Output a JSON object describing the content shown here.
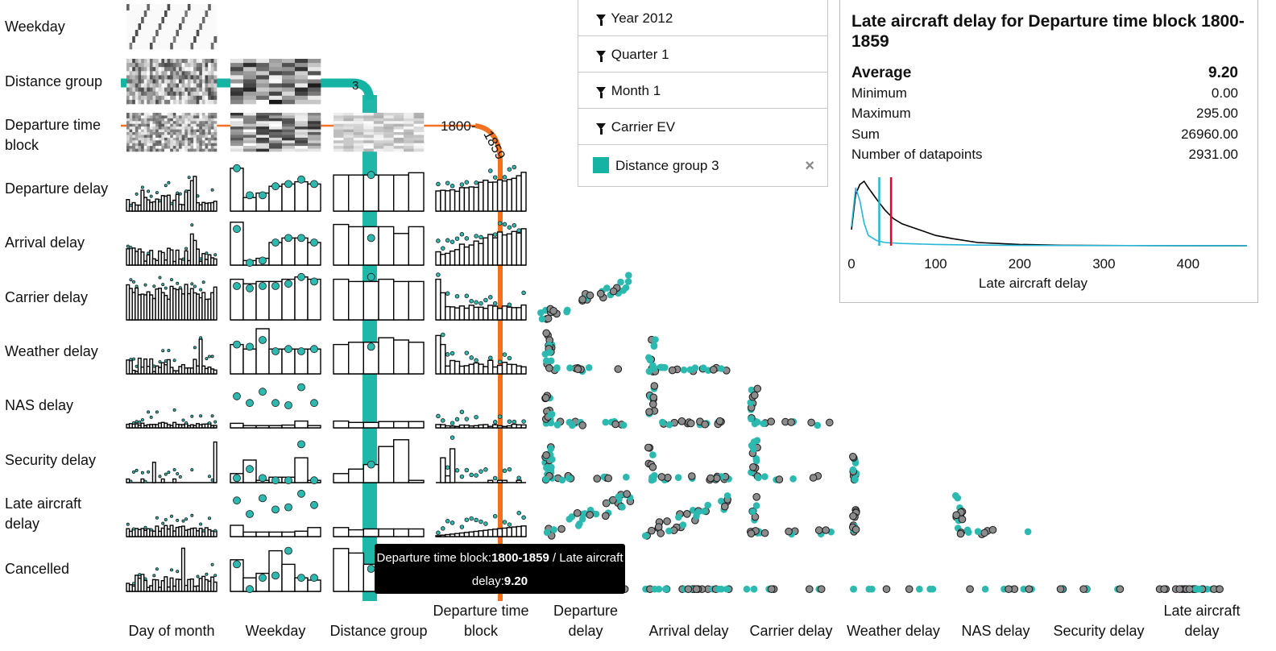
{
  "variables": [
    "Weekday",
    "Distance group",
    "Departure time block",
    "Departure delay",
    "Arrival delay",
    "Carrier delay",
    "Weather delay",
    "NAS delay",
    "Security delay",
    "Late aircraft delay",
    "Cancelled"
  ],
  "row_labels": [
    {
      "id": "weekday",
      "lines": [
        "Weekday"
      ]
    },
    {
      "id": "distance-group",
      "lines": [
        "Distance group"
      ]
    },
    {
      "id": "departure-time-block",
      "lines": [
        "Departure time",
        "block"
      ]
    },
    {
      "id": "departure-delay",
      "lines": [
        "Departure delay"
      ]
    },
    {
      "id": "arrival-delay",
      "lines": [
        "Arrival delay"
      ]
    },
    {
      "id": "carrier-delay",
      "lines": [
        "Carrier delay"
      ]
    },
    {
      "id": "weather-delay",
      "lines": [
        "Weather delay"
      ]
    },
    {
      "id": "nas-delay",
      "lines": [
        "NAS delay"
      ]
    },
    {
      "id": "security-delay",
      "lines": [
        "Security delay"
      ]
    },
    {
      "id": "late-aircraft-delay",
      "lines": [
        "Late aircraft",
        "delay"
      ]
    },
    {
      "id": "cancelled",
      "lines": [
        "Cancelled"
      ]
    }
  ],
  "col_labels": [
    {
      "id": "day-of-month",
      "lines": [
        "Day of month"
      ]
    },
    {
      "id": "weekday",
      "lines": [
        "Weekday"
      ]
    },
    {
      "id": "distance-group",
      "lines": [
        "Distance group"
      ]
    },
    {
      "id": "departure-time-block",
      "lines": [
        "Departure time",
        "block"
      ]
    },
    {
      "id": "departure-delay",
      "lines": [
        "Departure",
        "delay"
      ]
    },
    {
      "id": "arrival-delay",
      "lines": [
        "Arrival delay"
      ]
    },
    {
      "id": "carrier-delay",
      "lines": [
        "Carrier delay"
      ]
    },
    {
      "id": "weather-delay",
      "lines": [
        "Weather delay"
      ]
    },
    {
      "id": "nas-delay",
      "lines": [
        "NAS delay"
      ]
    },
    {
      "id": "security-delay",
      "lines": [
        "Security delay"
      ]
    },
    {
      "id": "late-aircraft-delay",
      "lines": [
        "Late aircraft",
        "delay"
      ]
    }
  ],
  "filters": {
    "year": "Year 2012",
    "quarter": "Quarter 1",
    "month": "Month 1",
    "carrier": "Carrier EV",
    "selection": "Distance group 3",
    "close": "×"
  },
  "selection_labels": {
    "distance_group": "3",
    "departure_time_block": "1800-1859"
  },
  "colors": {
    "selection_distance": "#14b3a3",
    "selection_time": "#f37021",
    "overall": "#777777",
    "highlight": "#2cb9b0"
  },
  "detail_panel": {
    "title": "Late aircraft delay for Departure time block 1800-1859",
    "stats": [
      {
        "label": "Average",
        "value": "9.20"
      },
      {
        "label": "Minimum",
        "value": "0.00"
      },
      {
        "label": "Maximum",
        "value": "295.00"
      },
      {
        "label": "Sum",
        "value": "26960.00"
      },
      {
        "label": "Number of datapoints",
        "value": "2931.00"
      }
    ]
  },
  "tooltip": {
    "prefix": "Departure time block:",
    "block": "1800-1859",
    "middle": " / Late aircraft delay:",
    "value": "9.20"
  },
  "chart_data": [
    {
      "type": "line",
      "title": "Late aircraft delay for Departure time block 1800-1859",
      "xlabel": "Late aircraft delay",
      "xticks": [
        "0",
        "100",
        "200",
        "300",
        "400"
      ],
      "xlim": [
        0,
        470
      ],
      "series": [
        {
          "color": "#000000",
          "x": [
            0,
            5,
            10,
            15,
            20,
            30,
            40,
            50,
            60,
            80,
            100,
            120,
            150,
            200,
            250,
            300,
            350,
            400,
            470
          ],
          "y": [
            0.25,
            0.8,
            0.95,
            1.0,
            0.9,
            0.72,
            0.55,
            0.42,
            0.34,
            0.25,
            0.16,
            0.11,
            0.05,
            0.02,
            0.008,
            0.004,
            0.002,
            0.001,
            0.0
          ]
        },
        {
          "color": "#27b6d8",
          "x": [
            0,
            5,
            10,
            15,
            20,
            30,
            40,
            60,
            100,
            150,
            200,
            300,
            470
          ],
          "y": [
            0.3,
            0.9,
            0.7,
            0.35,
            0.16,
            0.08,
            0.05,
            0.035,
            0.02,
            0.01,
            0.005,
            0.002,
            0.0
          ]
        }
      ],
      "vlines": [
        {
          "x": 33,
          "color": "#27b6d8"
        },
        {
          "x": 47,
          "color": "#e4002b"
        }
      ]
    },
    {
      "type": "scatter",
      "title": "",
      "note": "scatterplot matrix of flight delay variables; row/column variables listed in row_labels and col_labels"
    }
  ]
}
